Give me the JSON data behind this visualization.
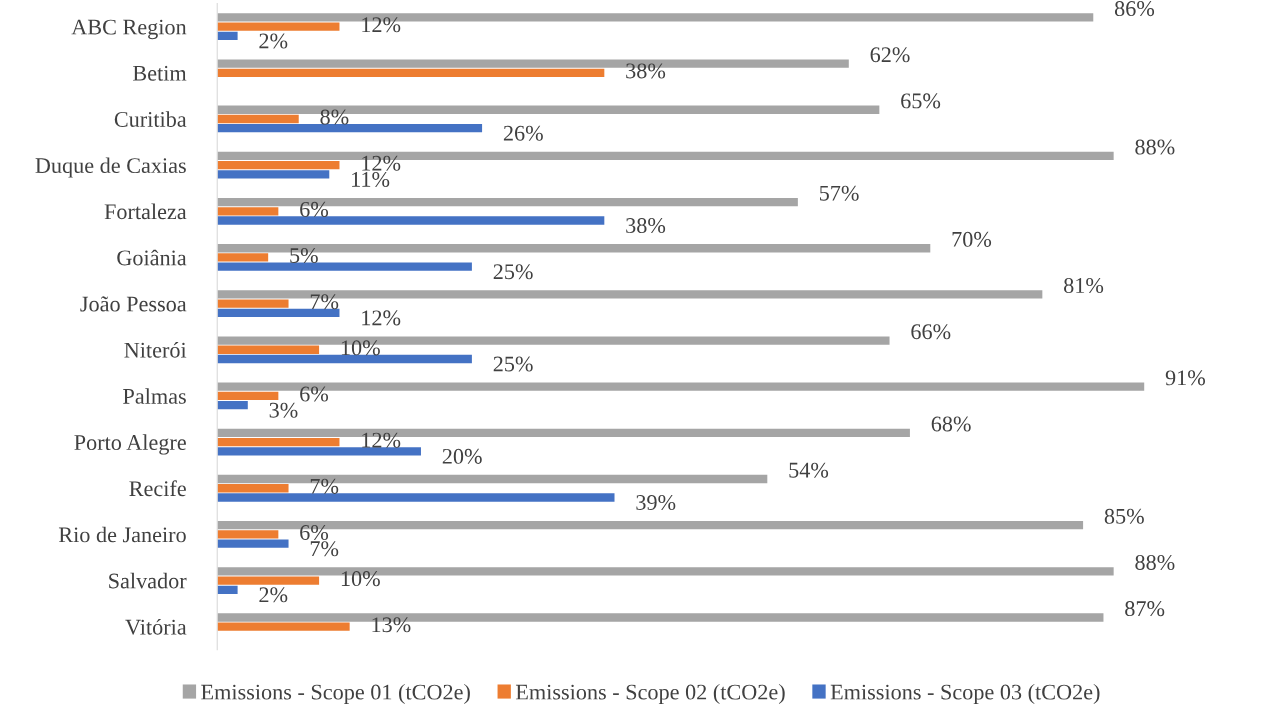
{
  "chart_data": {
    "type": "bar",
    "orientation": "horizontal",
    "legend": "bottom",
    "grid": false,
    "tick_labels": "y",
    "categories": [
      "ABC Region",
      "Betim",
      "Curitiba",
      "Duque de Caxias",
      "Fortaleza",
      "Goiânia",
      "João Pessoa",
      "Niterói",
      "Palmas",
      "Porto Alegre",
      "Recife",
      "Rio de Janeiro",
      "Salvador",
      "Vitória"
    ],
    "series": [
      {
        "name": "Emissions - Scope 01 (tCO2e)",
        "color": "#a5a5a5",
        "values": [
          86,
          62,
          65,
          88,
          57,
          70,
          81,
          66,
          91,
          68,
          54,
          85,
          88,
          87
        ],
        "value_labels": [
          "86%",
          "62%",
          "65%",
          "88%",
          "57%",
          "70%",
          "81%",
          "66%",
          "91%",
          "68%",
          "54%",
          "85%",
          "88%",
          "87%"
        ]
      },
      {
        "name": "Emissions - Scope 02 (tCO2e)",
        "color": "#ed7d31",
        "values": [
          12,
          38,
          8,
          12,
          6,
          5,
          7,
          10,
          6,
          12,
          7,
          6,
          10,
          13
        ],
        "value_labels": [
          "12%",
          "38%",
          "8%",
          "12%",
          "6%",
          "5%",
          "7%",
          "10%",
          "6%",
          "12%",
          "7%",
          "6%",
          "10%",
          "13%"
        ]
      },
      {
        "name": "Emissions - Scope 03 (tCO2e)",
        "color": "#4472c4",
        "values": [
          2,
          null,
          26,
          11,
          38,
          25,
          12,
          25,
          3,
          20,
          39,
          7,
          2,
          0
        ],
        "value_labels": [
          "2%",
          null,
          "26%",
          "11%",
          "38%",
          "25%",
          "12%",
          "25%",
          "3%",
          "20%",
          "39%",
          "7%",
          "2%",
          null
        ]
      }
    ]
  }
}
